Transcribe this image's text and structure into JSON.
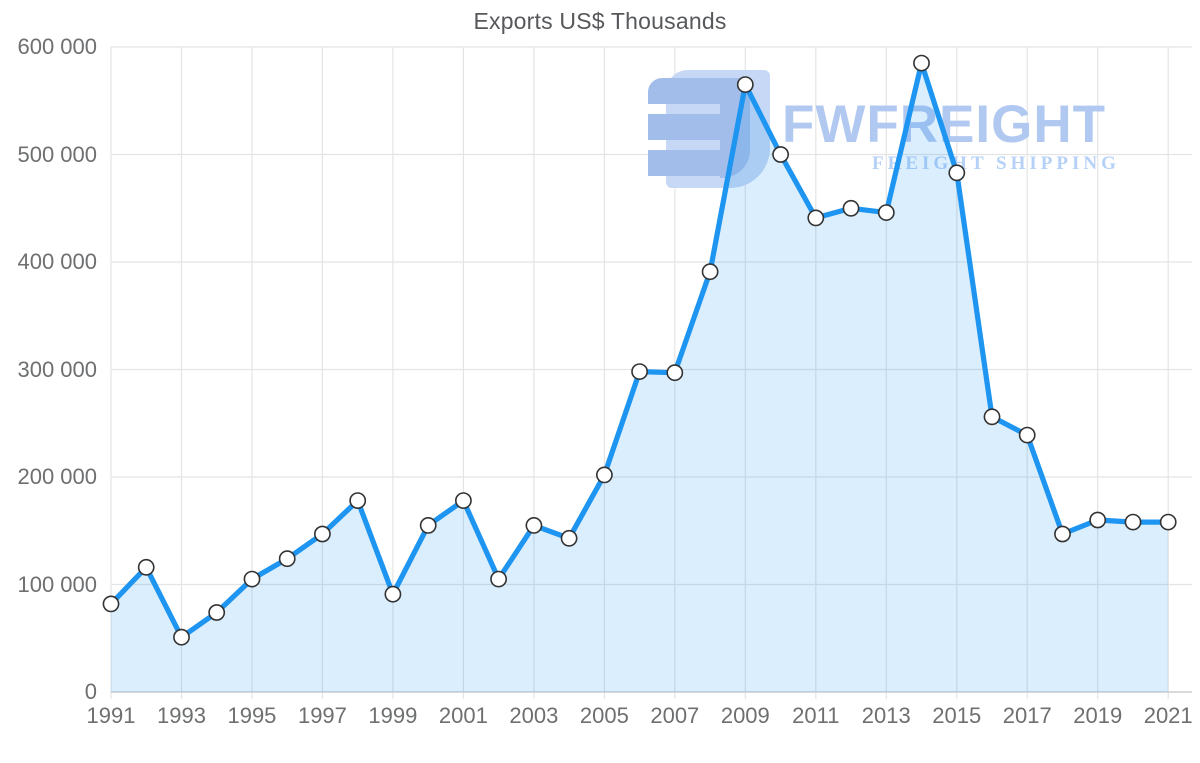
{
  "chart_data": {
    "type": "area",
    "title": "Exports US$ Thousands",
    "series_name": "Exports",
    "units": "US$ Thousands",
    "x": [
      1991,
      1992,
      1993,
      1994,
      1995,
      1996,
      1997,
      1998,
      1999,
      2000,
      2001,
      2002,
      2003,
      2004,
      2005,
      2006,
      2007,
      2008,
      2009,
      2010,
      2011,
      2012,
      2013,
      2014,
      2015,
      2016,
      2017,
      2018,
      2019,
      2020,
      2021
    ],
    "values": [
      82000,
      116000,
      51000,
      74000,
      105000,
      124000,
      147000,
      178000,
      91000,
      155000,
      178000,
      105000,
      155000,
      143000,
      202000,
      298000,
      297000,
      391000,
      565000,
      500000,
      441000,
      450000,
      446000,
      585000,
      483000,
      256000,
      239000,
      147000,
      160000,
      158000,
      158000
    ],
    "xlim": [
      1991,
      2021
    ],
    "ylim": [
      0,
      600000
    ],
    "ytick_values": [
      0,
      100000,
      200000,
      300000,
      400000,
      500000,
      600000
    ],
    "ytick_labels": [
      "0",
      "100 000",
      "200 000",
      "300 000",
      "400 000",
      "500 000",
      "600 000"
    ],
    "xtick_years": [
      1991,
      1993,
      1995,
      1997,
      1999,
      2001,
      2003,
      2005,
      2007,
      2009,
      2011,
      2013,
      2015,
      2017,
      2019,
      2021
    ],
    "grid": true,
    "legend": "none",
    "marker": "circle",
    "colors": {
      "line": "#1d95f1",
      "fill": "rgba(33,150,243,0.16)",
      "marker_fill": "#ffffff",
      "marker_stroke": "#333333",
      "gridline": "#e4e4e4",
      "axis_line": "#cdd0d3",
      "tick_label": "#6d6f71",
      "title": "#56585b"
    }
  },
  "watermark": {
    "brand": "FWFREIGHT",
    "tagline": "FREIGHT SHIPPING",
    "logo": "fwfreight-logo",
    "colors": {
      "brand_text": "#b1c9f1",
      "tagline_text": "#b5d1f7",
      "logo_dark": "#a3bdea",
      "logo_light": "#c6d8f5"
    }
  }
}
